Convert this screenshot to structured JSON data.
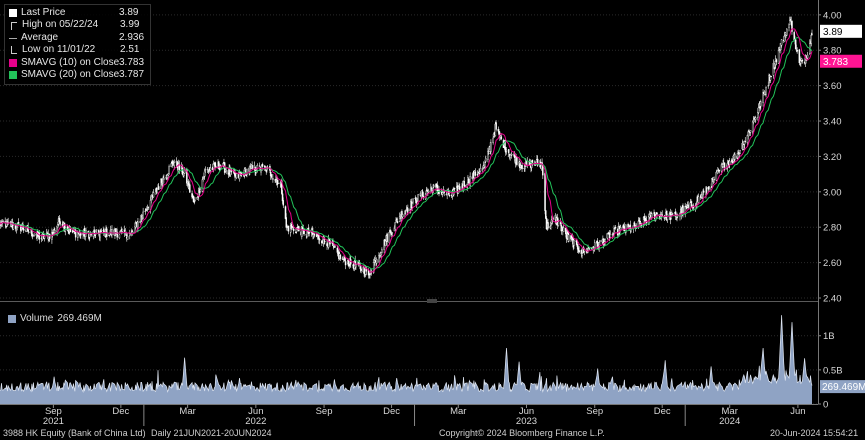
{
  "legend": {
    "items": [
      {
        "label": "Last Price",
        "value": "3.89",
        "icon": "white-square"
      },
      {
        "label": "High on 05/22/24",
        "value": "3.99",
        "icon": "high-marker"
      },
      {
        "label": "Average",
        "value": "2.936",
        "icon": "average-line"
      },
      {
        "label": "Low on 11/01/22",
        "value": "2.51",
        "icon": "low-marker"
      },
      {
        "label": "SMAVG (10)  on Close",
        "value": "3.783",
        "icon": "magenta-square"
      },
      {
        "label": "SMAVG (20)  on Close",
        "value": "3.787",
        "icon": "green-square"
      }
    ]
  },
  "volume_legend": {
    "label": "Volume",
    "value": "269.469M"
  },
  "footer": {
    "security": "3988 HK Equity (Bank of China Ltd)",
    "range": "Daily 21JUN2021-20JUN2024",
    "copyright": "Copyright© 2024 Bloomberg Finance L.P.",
    "timestamp": "20-Jun-2024 15:54:21"
  },
  "colors": {
    "price": "#ffffff",
    "sma10": "#e6008a",
    "sma20": "#22c25a",
    "volume": "#8fa3c4",
    "last_tag": "#ffffff",
    "sma_tag": "#ff1493"
  },
  "chart_data": [
    {
      "type": "candlestick",
      "x_range": [
        "2021-06-21",
        "2024-06-20"
      ],
      "ylim": [
        2.4,
        4.05
      ],
      "y_ticks": [
        "4.00",
        "3.80",
        "3.60",
        "3.40",
        "3.20",
        "3.00",
        "2.80",
        "2.60",
        "2.40"
      ],
      "x_month_labels": [
        "Sep",
        "Dec",
        "Mar",
        "Jun",
        "Sep",
        "Dec",
        "Mar",
        "Jun",
        "Sep",
        "Dec",
        "Mar",
        "Jun"
      ],
      "x_month_dates": [
        "2021-09-01",
        "2021-12-01",
        "2022-03-01",
        "2022-06-01",
        "2022-09-01",
        "2022-12-01",
        "2023-03-01",
        "2023-06-01",
        "2023-09-01",
        "2023-12-01",
        "2024-03-01",
        "2024-06-01"
      ],
      "x_year_labels": [
        "2021",
        "2022",
        "2023",
        "2024"
      ],
      "x_year_dates": [
        "2021-09-01",
        "2022-06-01",
        "2023-06-01",
        "2024-03-01"
      ],
      "price_path": [
        {
          "date": "2021-06-21",
          "price": 2.82
        },
        {
          "date": "2021-07-20",
          "price": 2.8
        },
        {
          "date": "2021-08-15",
          "price": 2.74
        },
        {
          "date": "2021-08-30",
          "price": 2.76
        },
        {
          "date": "2021-09-10",
          "price": 2.84
        },
        {
          "date": "2021-09-25",
          "price": 2.77
        },
        {
          "date": "2021-10-20",
          "price": 2.76
        },
        {
          "date": "2021-11-20",
          "price": 2.77
        },
        {
          "date": "2021-12-15",
          "price": 2.76
        },
        {
          "date": "2022-01-10",
          "price": 2.95
        },
        {
          "date": "2022-01-25",
          "price": 3.06
        },
        {
          "date": "2022-02-10",
          "price": 3.17
        },
        {
          "date": "2022-02-25",
          "price": 3.1
        },
        {
          "date": "2022-03-10",
          "price": 2.93
        },
        {
          "date": "2022-03-25",
          "price": 3.12
        },
        {
          "date": "2022-04-15",
          "price": 3.15
        },
        {
          "date": "2022-05-05",
          "price": 3.08
        },
        {
          "date": "2022-05-25",
          "price": 3.13
        },
        {
          "date": "2022-06-15",
          "price": 3.13
        },
        {
          "date": "2022-07-05",
          "price": 3.04
        },
        {
          "date": "2022-07-12",
          "price": 2.8
        },
        {
          "date": "2022-08-10",
          "price": 2.77
        },
        {
          "date": "2022-09-05",
          "price": 2.72
        },
        {
          "date": "2022-09-25",
          "price": 2.62
        },
        {
          "date": "2022-10-25",
          "price": 2.56
        },
        {
          "date": "2022-11-01",
          "price": 2.55
        },
        {
          "date": "2022-11-25",
          "price": 2.74
        },
        {
          "date": "2022-12-15",
          "price": 2.88
        },
        {
          "date": "2023-01-10",
          "price": 2.98
        },
        {
          "date": "2023-01-25",
          "price": 3.02
        },
        {
          "date": "2023-02-20",
          "price": 2.98
        },
        {
          "date": "2023-03-10",
          "price": 3.05
        },
        {
          "date": "2023-04-05",
          "price": 3.14
        },
        {
          "date": "2023-04-20",
          "price": 3.36
        },
        {
          "date": "2023-05-05",
          "price": 3.24
        },
        {
          "date": "2023-05-25",
          "price": 3.15
        },
        {
          "date": "2023-06-15",
          "price": 3.16
        },
        {
          "date": "2023-06-22",
          "price": 3.15
        },
        {
          "date": "2023-06-28",
          "price": 2.8
        },
        {
          "date": "2023-07-10",
          "price": 2.85
        },
        {
          "date": "2023-07-25",
          "price": 2.75
        },
        {
          "date": "2023-08-15",
          "price": 2.66
        },
        {
          "date": "2023-09-05",
          "price": 2.7
        },
        {
          "date": "2023-10-01",
          "price": 2.78
        },
        {
          "date": "2023-10-25",
          "price": 2.8
        },
        {
          "date": "2023-11-20",
          "price": 2.87
        },
        {
          "date": "2023-12-15",
          "price": 2.86
        },
        {
          "date": "2024-01-10",
          "price": 2.92
        },
        {
          "date": "2024-01-30",
          "price": 3.01
        },
        {
          "date": "2024-02-20",
          "price": 3.14
        },
        {
          "date": "2024-03-10",
          "price": 3.2
        },
        {
          "date": "2024-03-25",
          "price": 3.32
        },
        {
          "date": "2024-04-10",
          "price": 3.48
        },
        {
          "date": "2024-04-25",
          "price": 3.66
        },
        {
          "date": "2024-05-10",
          "price": 3.84
        },
        {
          "date": "2024-05-22",
          "price": 3.97
        },
        {
          "date": "2024-06-03",
          "price": 3.72
        },
        {
          "date": "2024-06-12",
          "price": 3.76
        },
        {
          "date": "2024-06-20",
          "price": 3.89
        }
      ],
      "high": {
        "date": "2024-05-22",
        "value": 3.99
      },
      "low": {
        "date": "2022-11-01",
        "value": 2.51
      },
      "last": {
        "date": "2024-06-20",
        "value": 3.89
      },
      "value_tags": [
        {
          "value": 3.89,
          "label": "3.89",
          "series": "Last Price"
        },
        {
          "value": 3.783,
          "label": "3.783",
          "series": "SMAVG (10)  on Close"
        }
      ]
    },
    {
      "type": "area",
      "series_name": "Volume",
      "ylim": [
        0,
        1.45
      ],
      "y_ticks": [
        "1B",
        "0.5B",
        "0"
      ],
      "y_tick_values": [
        1.0,
        0.5,
        0
      ],
      "unit": "B",
      "last_value": 0.269469,
      "last_label": "269.469M",
      "peaks": [
        {
          "date": "2021-09-02",
          "value": 0.4
        },
        {
          "date": "2022-02-25",
          "value": 0.68
        },
        {
          "date": "2022-05-10",
          "value": 0.38
        },
        {
          "date": "2022-09-15",
          "value": 0.36
        },
        {
          "date": "2023-05-05",
          "value": 0.82
        },
        {
          "date": "2023-05-22",
          "value": 0.62
        },
        {
          "date": "2023-09-05",
          "value": 0.52
        },
        {
          "date": "2023-12-05",
          "value": 0.64
        },
        {
          "date": "2024-02-05",
          "value": 0.55
        },
        {
          "date": "2024-04-15",
          "value": 0.7
        },
        {
          "date": "2024-05-10",
          "value": 1.18
        },
        {
          "date": "2024-05-24",
          "value": 1.08
        },
        {
          "date": "2024-06-10",
          "value": 0.55
        }
      ]
    }
  ]
}
